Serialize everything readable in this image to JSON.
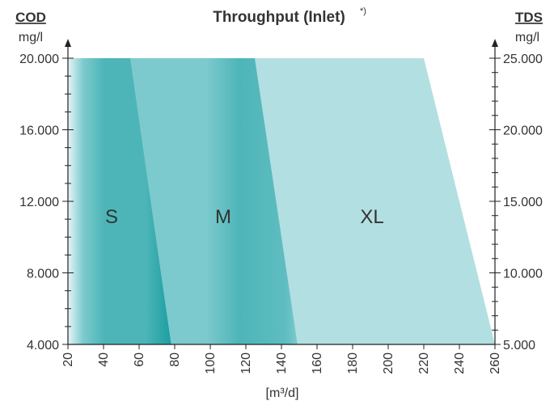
{
  "chart_data": {
    "type": "area",
    "title": "Throughput (Inlet)",
    "title_note": "*)",
    "xlabel": "[m³/d]",
    "left_axis": {
      "label": "COD",
      "unit": "mg/l",
      "range": [
        4000,
        20000
      ],
      "ticks": [
        4000,
        8000,
        12000,
        16000,
        20000
      ],
      "tick_labels": [
        "4.000",
        "8.000",
        "12.000",
        "16.000",
        "20.000"
      ]
    },
    "right_axis": {
      "label": "TDS",
      "unit": "mg/l",
      "range": [
        5000,
        25000
      ],
      "ticks": [
        5000,
        10000,
        15000,
        20000,
        25000
      ],
      "tick_labels": [
        "5.000",
        "10.000",
        "15.000",
        "20.000",
        "25.000"
      ]
    },
    "x_axis": {
      "range": [
        20,
        260
      ],
      "ticks": [
        20,
        40,
        60,
        80,
        100,
        120,
        140,
        160,
        180,
        200,
        220,
        240,
        260
      ],
      "tick_labels": [
        "20",
        "40",
        "60",
        "80",
        "100",
        "120",
        "140",
        "160",
        "180",
        "200",
        "220",
        "240",
        "260"
      ]
    },
    "series": [
      {
        "name": "XL",
        "color": "#b2dfe2",
        "boundary": [
          {
            "x": 220,
            "y": 20000
          },
          {
            "x": 260,
            "y": 4000
          }
        ]
      },
      {
        "name": "M",
        "color": "#7ccacd",
        "boundary": [
          {
            "x": 125,
            "y": 20000
          },
          {
            "x": 149,
            "y": 4000
          }
        ]
      },
      {
        "name": "S",
        "color": "#4db5b8",
        "boundary": [
          {
            "x": 55,
            "y": 20000
          },
          {
            "x": 78,
            "y": 4000
          }
        ]
      }
    ],
    "grid": false,
    "legend": "none"
  }
}
